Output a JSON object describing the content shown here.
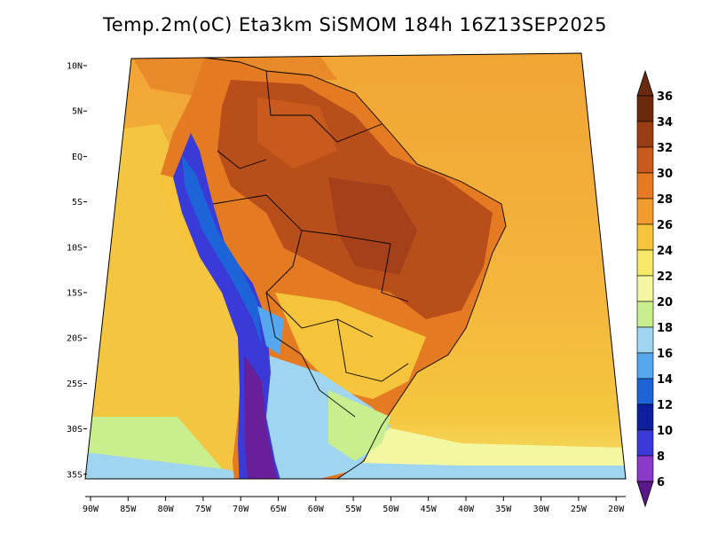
{
  "title": "Temp.2m(oC) Eta3km SiSMOM 184h 16Z13SEP2025",
  "latitude_labels": [
    "10N",
    "5N",
    "EQ",
    "5S",
    "10S",
    "15S",
    "20S",
    "25S",
    "30S",
    "35S"
  ],
  "longitude_labels": [
    "90W",
    "85W",
    "80W",
    "75W",
    "70W",
    "65W",
    "60W",
    "55W",
    "50W",
    "45W",
    "40W",
    "35W",
    "30W",
    "25W",
    "20W"
  ],
  "colorbar": {
    "labels": [
      "36",
      "34",
      "32",
      "30",
      "28",
      "26",
      "24",
      "22",
      "20",
      "18",
      "16",
      "14",
      "12",
      "10",
      "8",
      "6"
    ],
    "colors": [
      "#6b2a0e",
      "#9a3d14",
      "#c75a1c",
      "#e67a22",
      "#f29b2e",
      "#f6c43a",
      "#f7e86a",
      "#f4f7a2",
      "#c8ee8e",
      "#9fd5f0",
      "#55a8ee",
      "#1c64d8",
      "#0e1f9e",
      "#3a3ad8",
      "#8a3ac8",
      "#5a188a"
    ]
  },
  "colors": {
    "ocean_warm": "#f2a030",
    "ocean_mid": "#f6c43a",
    "land_hot": "#c75a1c",
    "andes_cold": "#3a3ad8"
  }
}
